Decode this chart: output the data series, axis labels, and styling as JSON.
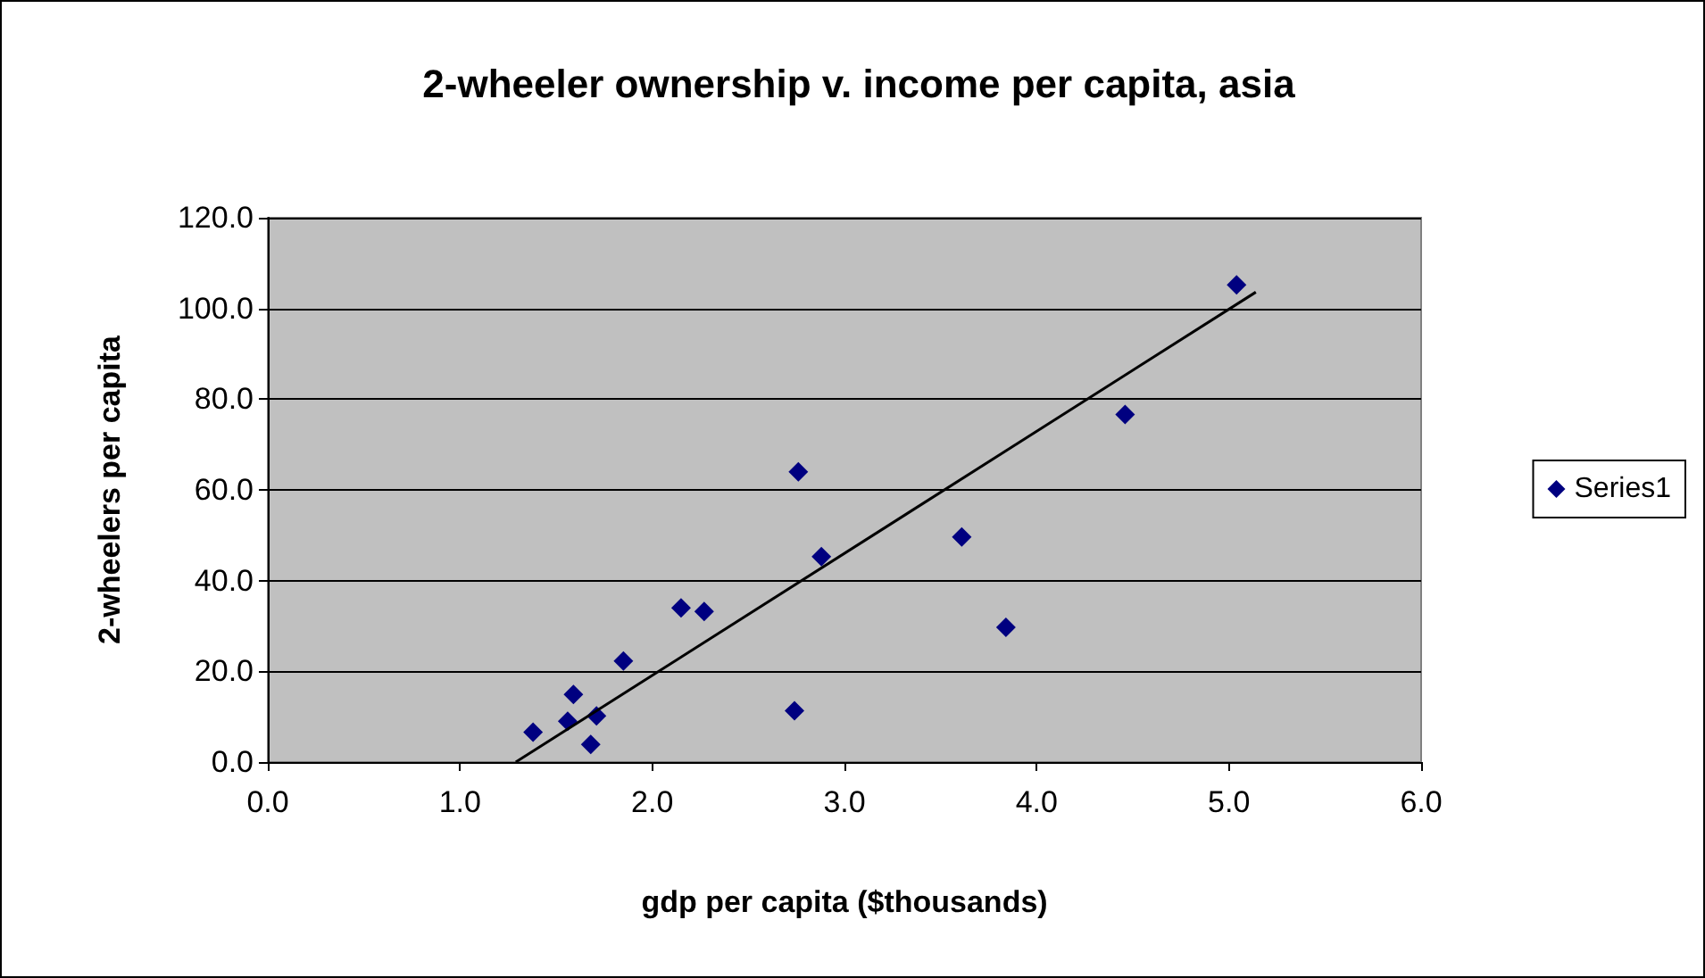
{
  "chart_data": {
    "type": "scatter",
    "title": "2-wheeler ownership v. income per capita, asia",
    "xlabel": "gdp per capita ($thousands)",
    "ylabel": "2-wheelers per capita",
    "x": [
      1.38,
      1.56,
      1.59,
      1.68,
      1.71,
      1.85,
      2.15,
      2.27,
      2.74,
      2.76,
      2.88,
      3.61,
      3.84,
      4.46,
      5.04
    ],
    "series": [
      {
        "name": "Series1",
        "color": "#000080",
        "values": [
          6.6,
          9.0,
          14.9,
          3.9,
          10.2,
          22.3,
          34.0,
          33.2,
          11.3,
          64.0,
          45.3,
          49.6,
          29.7,
          76.6,
          105.2
        ]
      },
      {
        "type": "line",
        "marker": "none",
        "color": "#000000",
        "x": [
          1.29,
          5.14
        ],
        "values": [
          0,
          103.6
        ]
      }
    ],
    "xlim": [
      0,
      6
    ],
    "xticks": [
      {
        "value": 0,
        "label": "0.0"
      },
      {
        "value": 1,
        "label": "1.0"
      },
      {
        "value": 2,
        "label": "2.0"
      },
      {
        "value": 3,
        "label": "3.0"
      },
      {
        "value": 4,
        "label": "4.0"
      },
      {
        "value": 5,
        "label": "5.0"
      },
      {
        "value": 6,
        "label": "6.0"
      }
    ],
    "ylim": [
      0,
      120
    ],
    "yticks": [
      {
        "value": 0,
        "label": "0.0"
      },
      {
        "value": 20,
        "label": "20.0"
      },
      {
        "value": 40,
        "label": "40.0"
      },
      {
        "value": 60,
        "label": "60.0"
      },
      {
        "value": 80,
        "label": "80.0"
      },
      {
        "value": 100,
        "label": "100.0"
      },
      {
        "value": 120,
        "label": "120.0"
      }
    ],
    "grid": "y",
    "legend": "right",
    "marker": "diamond"
  }
}
